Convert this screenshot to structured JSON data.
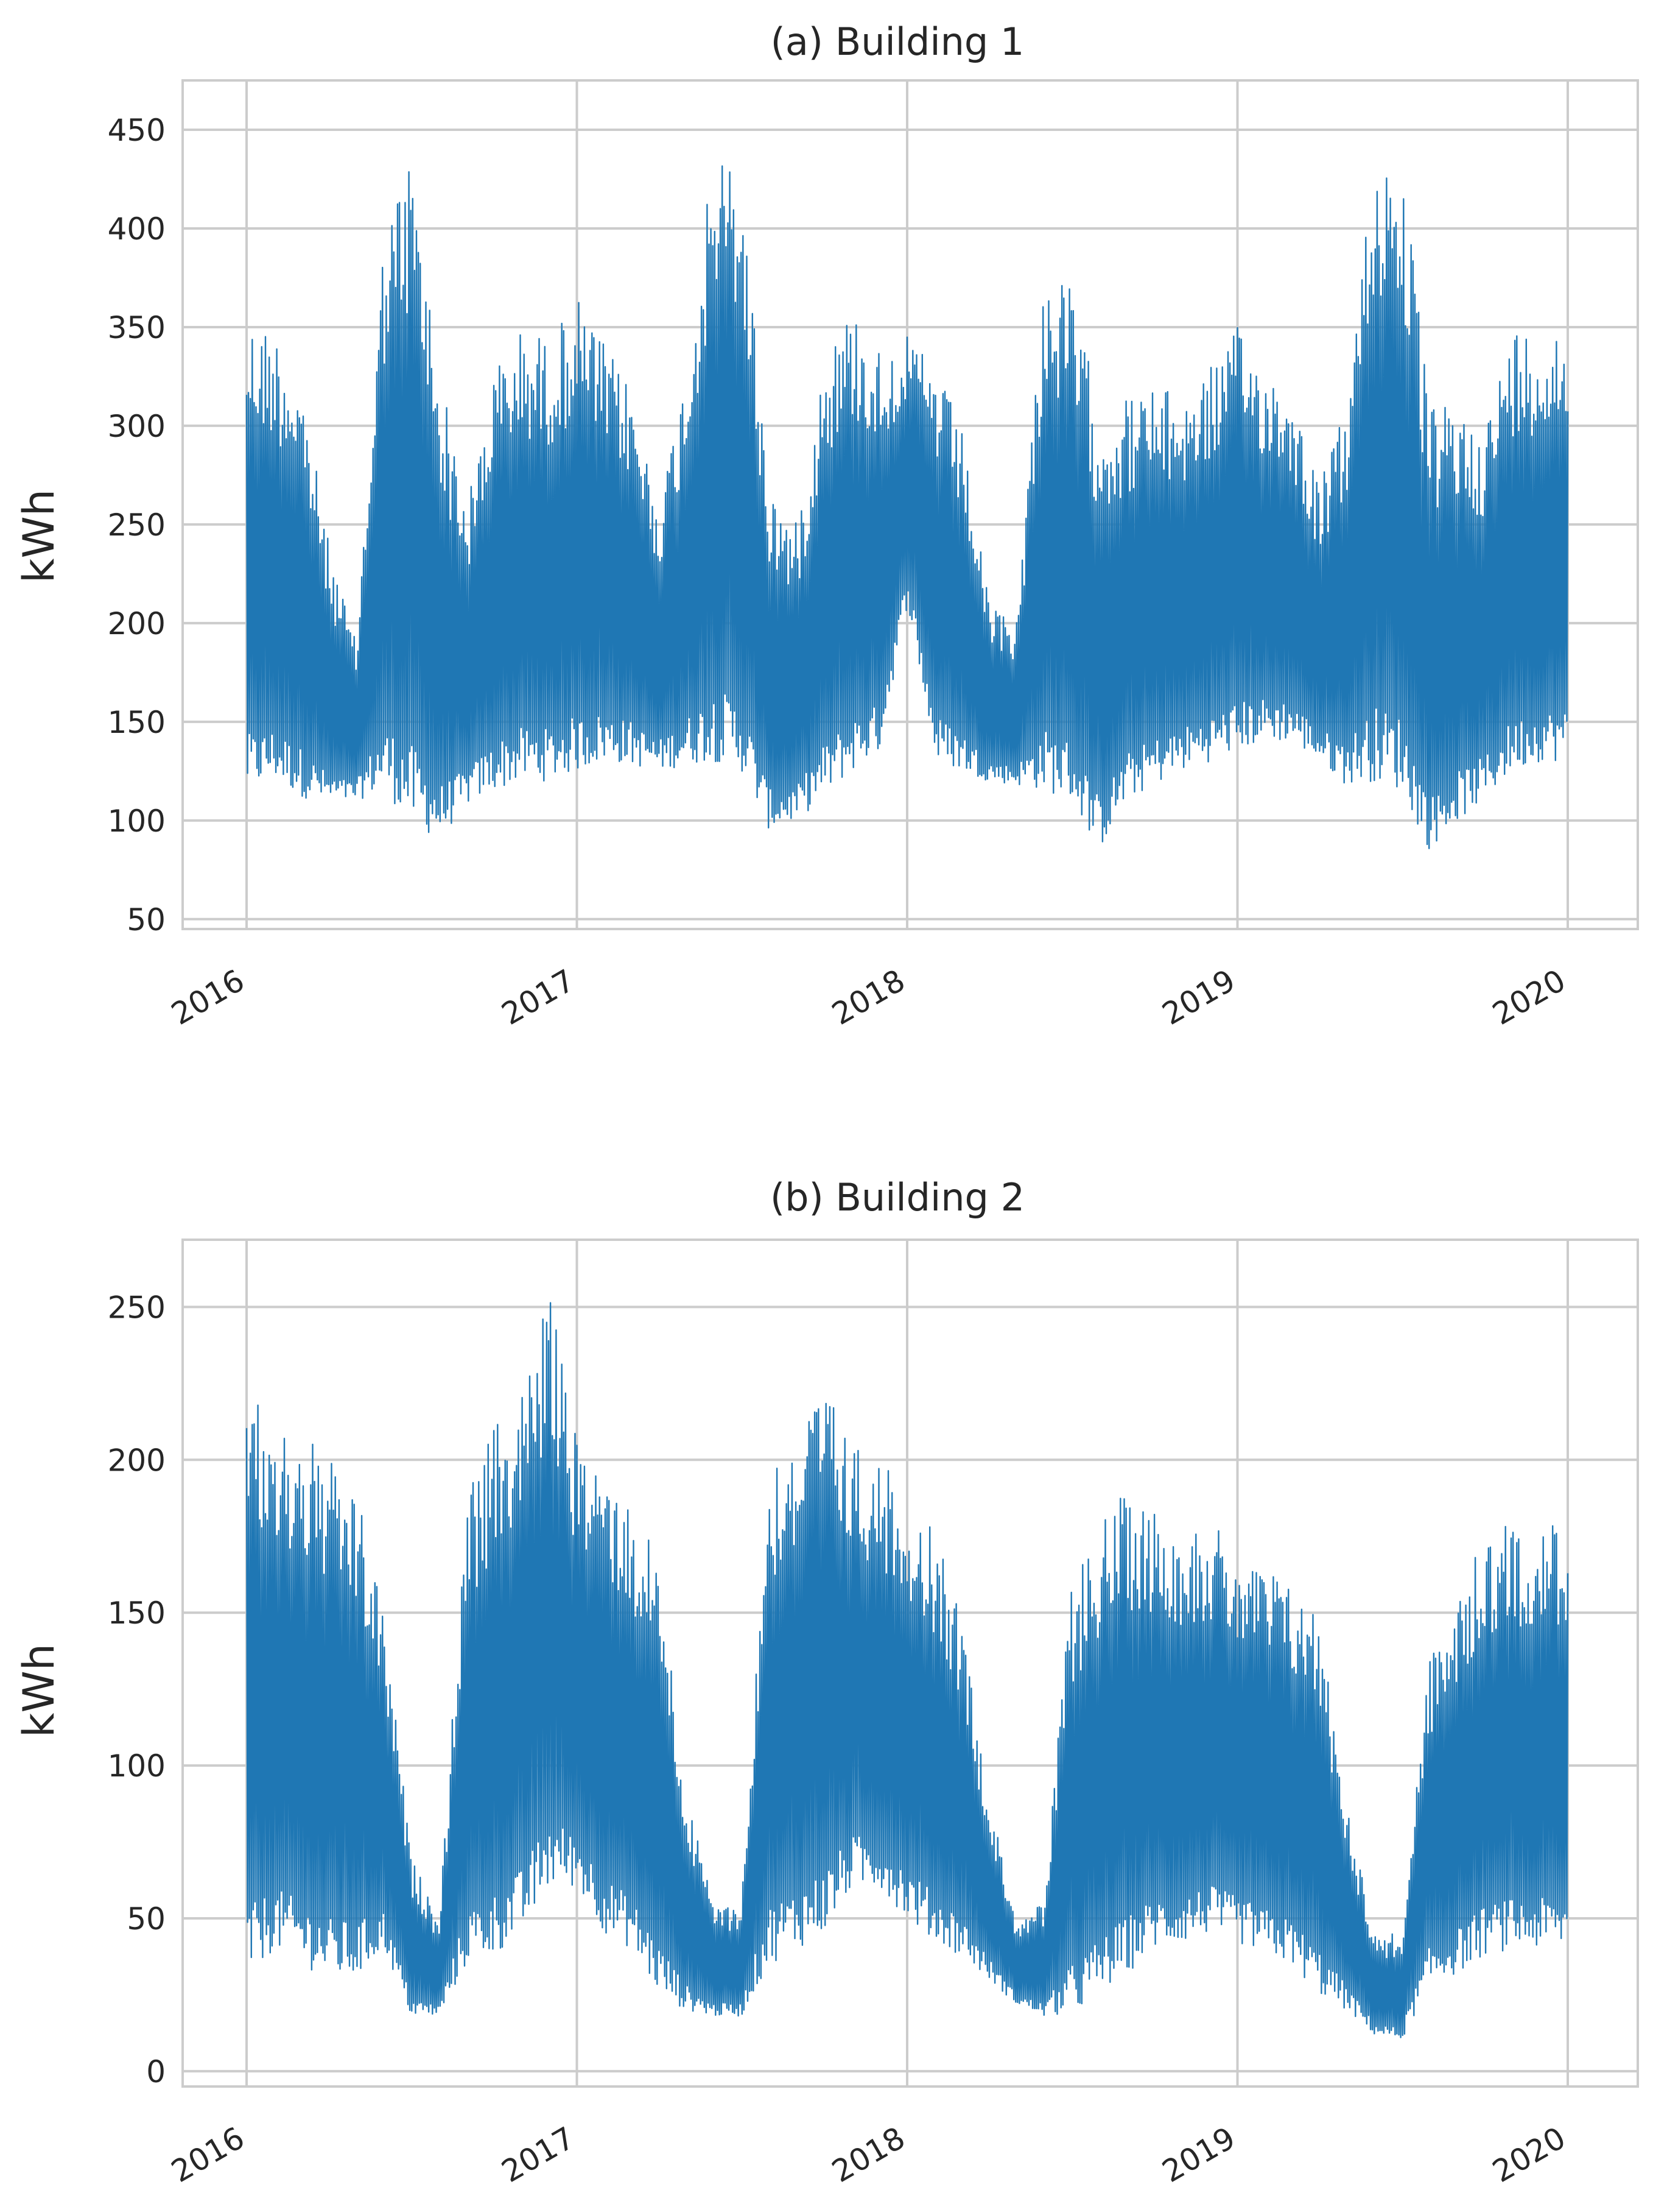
{
  "chart_data": [
    {
      "type": "line",
      "title": "(a) Building 1",
      "ylabel": "kWh",
      "xlabel": "",
      "x_range": [
        "2016-01-01",
        "2020-01-01"
      ],
      "xticks": [
        "2016",
        "2017",
        "2018",
        "2019",
        "2020"
      ],
      "yticks": [
        50,
        100,
        150,
        200,
        250,
        300,
        350,
        400,
        450
      ],
      "ylim": [
        45,
        475
      ],
      "grid": true,
      "color": "#1f77b4",
      "series": [
        {
          "x": [
            "2016-01",
            "2016-02",
            "2016-03",
            "2016-04",
            "2016-05",
            "2016-06",
            "2016-07",
            "2016-08",
            "2016-09",
            "2016-10",
            "2016-11",
            "2016-12",
            "2017-01",
            "2017-02",
            "2017-03",
            "2017-04",
            "2017-05",
            "2017-06",
            "2017-07",
            "2017-08",
            "2017-09",
            "2017-10",
            "2017-11",
            "2017-12",
            "2018-01",
            "2018-02",
            "2018-03",
            "2018-04",
            "2018-05",
            "2018-06",
            "2018-07",
            "2018-08",
            "2018-09",
            "2018-10",
            "2018-11",
            "2018-12",
            "2019-01",
            "2019-02",
            "2019-03",
            "2019-04",
            "2019-05",
            "2019-06",
            "2019-07",
            "2019-08",
            "2019-09",
            "2019-10",
            "2019-11",
            "2019-12"
          ],
          "high": [
            355,
            350,
            325,
            240,
            190,
            400,
            440,
            330,
            260,
            330,
            350,
            345,
            365,
            340,
            320,
            260,
            330,
            440,
            430,
            270,
            250,
            340,
            360,
            340,
            345,
            330,
            300,
            210,
            200,
            380,
            370,
            310,
            315,
            320,
            315,
            330,
            350,
            330,
            320,
            270,
            310,
            440,
            440,
            310,
            310,
            300,
            350,
            350
          ],
          "low": [
            115,
            120,
            112,
            108,
            110,
            115,
            98,
            90,
            108,
            115,
            120,
            120,
            125,
            130,
            128,
            125,
            128,
            130,
            125,
            95,
            100,
            112,
            125,
            135,
            210,
            130,
            125,
            120,
            118,
            115,
            110,
            85,
            110,
            118,
            125,
            130,
            135,
            140,
            140,
            130,
            118,
            120,
            115,
            85,
            100,
            110,
            125,
            130
          ]
        }
      ]
    },
    {
      "type": "line",
      "title": "(b) Building 2",
      "ylabel": "kWh",
      "xlabel": "",
      "x_range": [
        "2016-01-01",
        "2020-01-01"
      ],
      "xticks": [
        "2016",
        "2017",
        "2018",
        "2019",
        "2020"
      ],
      "yticks": [
        0,
        50,
        100,
        150,
        200,
        250
      ],
      "ylim": [
        -5,
        272
      ],
      "grid": true,
      "color": "#1f77b4",
      "series": [
        {
          "x": [
            "2016-01",
            "2016-02",
            "2016-03",
            "2016-04",
            "2016-05",
            "2016-06",
            "2016-07",
            "2016-08",
            "2016-09",
            "2016-10",
            "2016-11",
            "2016-12",
            "2017-01",
            "2017-02",
            "2017-03",
            "2017-04",
            "2017-05",
            "2017-06",
            "2017-07",
            "2017-08",
            "2017-09",
            "2017-10",
            "2017-11",
            "2017-12",
            "2018-01",
            "2018-02",
            "2018-03",
            "2018-04",
            "2018-05",
            "2018-06",
            "2018-07",
            "2018-08",
            "2018-09",
            "2018-10",
            "2018-11",
            "2018-12",
            "2019-01",
            "2019-02",
            "2019-03",
            "2019-04",
            "2019-05",
            "2019-06",
            "2019-07",
            "2019-08",
            "2019-09",
            "2019-10",
            "2019-11",
            "2019-12"
          ],
          "high": [
            225,
            210,
            210,
            200,
            190,
            150,
            70,
            50,
            190,
            210,
            225,
            255,
            205,
            200,
            185,
            170,
            90,
            55,
            55,
            200,
            210,
            225,
            205,
            200,
            190,
            175,
            150,
            90,
            50,
            55,
            160,
            180,
            190,
            185,
            180,
            180,
            170,
            165,
            160,
            150,
            90,
            45,
            45,
            135,
            155,
            175,
            180,
            180
          ],
          "low": [
            30,
            40,
            35,
            30,
            30,
            40,
            18,
            18,
            35,
            38,
            45,
            60,
            60,
            45,
            40,
            25,
            20,
            18,
            18,
            35,
            40,
            45,
            60,
            60,
            50,
            42,
            38,
            30,
            22,
            18,
            18,
            25,
            32,
            40,
            42,
            45,
            42,
            38,
            35,
            25,
            20,
            12,
            10,
            28,
            32,
            38,
            40,
            40
          ]
        }
      ]
    }
  ]
}
